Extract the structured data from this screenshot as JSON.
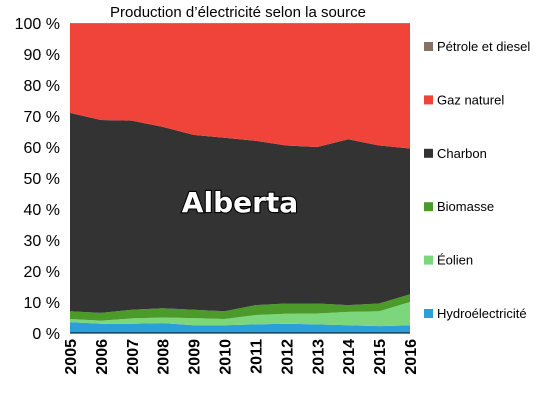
{
  "chart_data": {
    "type": "area",
    "stacked": true,
    "title": "Production d’électricité selon la source",
    "annotation": "Alberta",
    "xlabel": "",
    "ylabel": "",
    "x": [
      "2005",
      "2006",
      "2007",
      "2008",
      "2009",
      "2010",
      "2011",
      "2012",
      "2013",
      "2014",
      "2015",
      "2016"
    ],
    "ylim": [
      0,
      100
    ],
    "yticks": [
      "0 %",
      "10 %",
      "20 %",
      "30 %",
      "40 %",
      "50 %",
      "60 %",
      "70 %",
      "80 %",
      "90 %",
      "100 %"
    ],
    "grid": false,
    "legend_position": "right",
    "series": [
      {
        "name": "Hydroélectricité",
        "color": "#2a9fd8",
        "values": [
          3.5,
          3.0,
          3.0,
          3.2,
          2.5,
          2.5,
          2.8,
          3.0,
          2.8,
          2.5,
          2.2,
          2.5
        ]
      },
      {
        "name": "Éolien",
        "color": "#7cd67c",
        "values": [
          1.0,
          1.0,
          1.7,
          1.8,
          2.3,
          2.0,
          3.0,
          3.2,
          3.5,
          4.3,
          4.8,
          7.5
        ]
      },
      {
        "name": "Biomasse",
        "color": "#4c9a2a",
        "values": [
          2.5,
          2.5,
          2.8,
          3.0,
          2.7,
          2.5,
          3.2,
          3.3,
          3.2,
          2.2,
          2.5,
          2.5
        ]
      },
      {
        "name": "Charbon",
        "color": "#333333",
        "values": [
          64.0,
          62.2,
          61.0,
          58.5,
          56.4,
          56.0,
          53.0,
          51.0,
          50.5,
          53.5,
          51.0,
          47.0
        ]
      },
      {
        "name": "Gaz naturel",
        "color": "#f0443a",
        "values": [
          28.9,
          31.2,
          31.4,
          33.4,
          36.0,
          36.9,
          37.9,
          39.4,
          39.9,
          37.4,
          39.4,
          40.4
        ]
      },
      {
        "name": "Pétrole et diesel",
        "color": "#8a7060",
        "values": [
          0.1,
          0.1,
          0.1,
          0.1,
          0.1,
          0.1,
          0.1,
          0.1,
          0.1,
          0.1,
          0.1,
          0.1
        ]
      }
    ]
  }
}
